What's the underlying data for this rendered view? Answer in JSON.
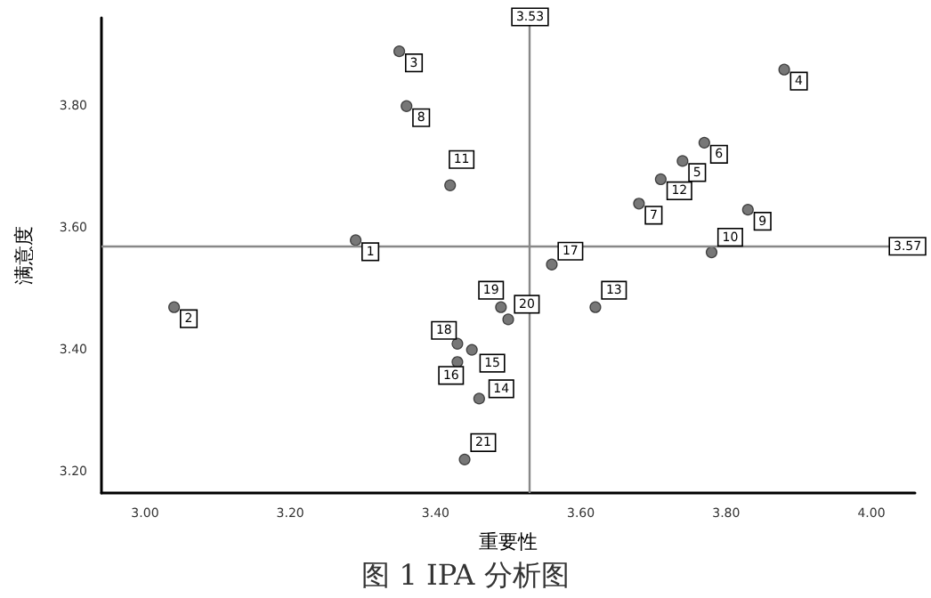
{
  "chart_data": {
    "type": "scatter",
    "title": "图 1 IPA 分析图",
    "xlabel": "重要性",
    "ylabel": "满意度",
    "x": [
      3.29,
      3.04,
      3.35,
      3.88,
      3.74,
      3.77,
      3.68,
      3.36,
      3.83,
      3.78,
      3.42,
      3.71,
      3.62,
      3.46,
      3.45,
      3.43,
      3.56,
      3.43,
      3.49,
      3.5,
      3.44
    ],
    "series": [
      {
        "color": "#555555",
        "values": [
          3.58,
          3.47,
          3.89,
          3.86,
          3.71,
          3.74,
          3.64,
          3.8,
          3.63,
          3.56,
          3.67,
          3.68,
          3.47,
          3.32,
          3.4,
          3.38,
          3.54,
          3.41,
          3.47,
          3.45,
          3.22
        ]
      }
    ],
    "xlim": [
      2.94,
      4.06
    ],
    "ylim": [
      3.165,
      3.945
    ],
    "xticks": [
      {
        "value": 3,
        "label": "3.00"
      },
      {
        "value": 3.2,
        "label": "3.20"
      },
      {
        "value": 3.4,
        "label": "3.40"
      },
      {
        "value": 3.6,
        "label": "3.60"
      },
      {
        "value": 3.8,
        "label": "3.80"
      },
      {
        "value": 4,
        "label": "4.00"
      }
    ],
    "yticks": [
      {
        "value": 3.2,
        "label": "3.20"
      },
      {
        "value": 3.4,
        "label": "3.40"
      },
      {
        "value": 3.6,
        "label": "3.60"
      },
      {
        "value": 3.8,
        "label": "3.80"
      }
    ],
    "ref_lines": [
      {
        "axis": "x",
        "value": 3.53,
        "label": "3.53",
        "color": "#888888"
      },
      {
        "axis": "y",
        "value": 3.57,
        "label": "3.57",
        "color": "#888888"
      }
    ],
    "annotations": [
      {
        "text": "1",
        "x": 3.29,
        "y": 3.58
      },
      {
        "text": "2",
        "x": 3.04,
        "y": 3.47
      },
      {
        "text": "3",
        "x": 3.35,
        "y": 3.89
      },
      {
        "text": "4",
        "x": 3.88,
        "y": 3.86
      },
      {
        "text": "5",
        "x": 3.74,
        "y": 3.71
      },
      {
        "text": "6",
        "x": 3.77,
        "y": 3.74
      },
      {
        "text": "7",
        "x": 3.68,
        "y": 3.64
      },
      {
        "text": "8",
        "x": 3.36,
        "y": 3.8
      },
      {
        "text": "9",
        "x": 3.83,
        "y": 3.63
      },
      {
        "text": "10",
        "x": 3.78,
        "y": 3.56
      },
      {
        "text": "11",
        "x": 3.42,
        "y": 3.67
      },
      {
        "text": "12",
        "x": 3.71,
        "y": 3.68
      },
      {
        "text": "13",
        "x": 3.62,
        "y": 3.47
      },
      {
        "text": "14",
        "x": 3.46,
        "y": 3.32
      },
      {
        "text": "15",
        "x": 3.45,
        "y": 3.4
      },
      {
        "text": "16",
        "x": 3.43,
        "y": 3.38
      },
      {
        "text": "17",
        "x": 3.56,
        "y": 3.54
      },
      {
        "text": "18",
        "x": 3.43,
        "y": 3.41
      },
      {
        "text": "19",
        "x": 3.49,
        "y": 3.47
      },
      {
        "text": "20",
        "x": 3.5,
        "y": 3.45
      },
      {
        "text": "21",
        "x": 3.44,
        "y": 3.22
      }
    ],
    "marker": "circle",
    "grid": false
  }
}
